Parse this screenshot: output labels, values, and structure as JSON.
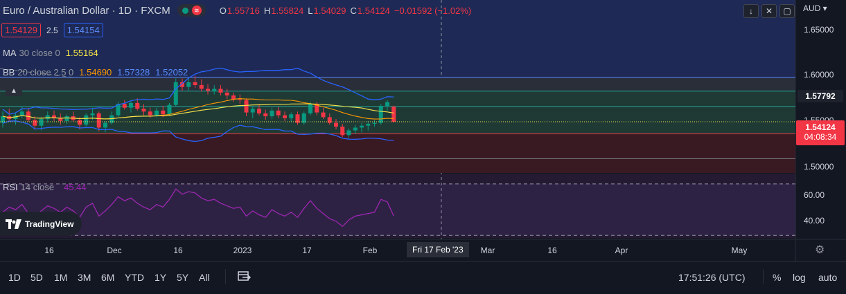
{
  "header": {
    "title": "Euro / Australian Dollar · 1D · FXCM",
    "open_label": "O",
    "open": "1.55716",
    "high_label": "H",
    "high": "1.55824",
    "low_label": "L",
    "low": "1.54029",
    "close_label": "C",
    "close": "1.54124",
    "change": "−0.01592 (−1.02%)"
  },
  "quote": {
    "bid": "1.54129",
    "spread": "2.5",
    "ask": "1.54154"
  },
  "indicators": {
    "ma": {
      "name": "MA",
      "params": "30 close 0",
      "value": "1.55164"
    },
    "bb": {
      "name": "BB",
      "params": "20 close 2.5 0",
      "basis": "1.54690",
      "upper": "1.57328",
      "lower": "1.52052"
    },
    "rsi": {
      "name": "RSI",
      "params": "14 close",
      "value": "45.44"
    }
  },
  "price_axis": {
    "currency": "AUD",
    "labels": [
      "1.65000",
      "1.60000",
      "1.55000",
      "1.50000"
    ],
    "crosshair_price": "1.57792",
    "last_price": "1.54124",
    "countdown": "04:08:34"
  },
  "rsi_axis": {
    "labels": [
      "60.00",
      "40.00"
    ]
  },
  "time_axis": {
    "labels": [
      "16",
      "Dec",
      "16",
      "2023",
      "17",
      "Feb",
      "Mar",
      "16",
      "Apr",
      "May"
    ],
    "crosshair_date": "Fri 17 Feb '23"
  },
  "brand": {
    "logo_text": "TradingView"
  },
  "bottom_bar": {
    "ranges": [
      "1D",
      "5D",
      "1M",
      "3M",
      "6M",
      "YTD",
      "1Y",
      "5Y",
      "All"
    ],
    "clock": "17:51:26 (UTC)",
    "options": [
      "%",
      "log",
      "auto"
    ]
  },
  "colors": {
    "background": "#131722",
    "up": "#089981",
    "down": "#f23645",
    "bollinger": "#2962ff",
    "bb_basis": "#ff9800",
    "ma": "#f7e54a",
    "rsi": "#9c27b0"
  },
  "chart_data": {
    "type": "candlestick",
    "symbol": "EURAUD",
    "timeframe": "1D",
    "candles": [
      {
        "o": 1.54,
        "h": 1.552,
        "l": 1.535,
        "c": 1.547
      },
      {
        "o": 1.547,
        "h": 1.555,
        "l": 1.542,
        "c": 1.544
      },
      {
        "o": 1.544,
        "h": 1.551,
        "l": 1.538,
        "c": 1.548
      },
      {
        "o": 1.548,
        "h": 1.557,
        "l": 1.545,
        "c": 1.552
      },
      {
        "o": 1.552,
        "h": 1.556,
        "l": 1.541,
        "c": 1.543
      },
      {
        "o": 1.543,
        "h": 1.547,
        "l": 1.533,
        "c": 1.537
      },
      {
        "o": 1.537,
        "h": 1.546,
        "l": 1.532,
        "c": 1.544
      },
      {
        "o": 1.544,
        "h": 1.552,
        "l": 1.54,
        "c": 1.548
      },
      {
        "o": 1.548,
        "h": 1.553,
        "l": 1.542,
        "c": 1.545
      },
      {
        "o": 1.545,
        "h": 1.55,
        "l": 1.538,
        "c": 1.542
      },
      {
        "o": 1.542,
        "h": 1.549,
        "l": 1.539,
        "c": 1.547
      },
      {
        "o": 1.547,
        "h": 1.552,
        "l": 1.541,
        "c": 1.543
      },
      {
        "o": 1.543,
        "h": 1.546,
        "l": 1.533,
        "c": 1.538
      },
      {
        "o": 1.538,
        "h": 1.55,
        "l": 1.536,
        "c": 1.548
      },
      {
        "o": 1.548,
        "h": 1.556,
        "l": 1.543,
        "c": 1.55
      },
      {
        "o": 1.55,
        "h": 1.552,
        "l": 1.531,
        "c": 1.535
      },
      {
        "o": 1.535,
        "h": 1.542,
        "l": 1.53,
        "c": 1.54
      },
      {
        "o": 1.54,
        "h": 1.552,
        "l": 1.538,
        "c": 1.548
      },
      {
        "o": 1.548,
        "h": 1.562,
        "l": 1.546,
        "c": 1.56
      },
      {
        "o": 1.56,
        "h": 1.564,
        "l": 1.554,
        "c": 1.556
      },
      {
        "o": 1.556,
        "h": 1.564,
        "l": 1.551,
        "c": 1.561
      },
      {
        "o": 1.561,
        "h": 1.566,
        "l": 1.553,
        "c": 1.555
      },
      {
        "o": 1.555,
        "h": 1.56,
        "l": 1.548,
        "c": 1.552
      },
      {
        "o": 1.552,
        "h": 1.556,
        "l": 1.545,
        "c": 1.548
      },
      {
        "o": 1.548,
        "h": 1.556,
        "l": 1.546,
        "c": 1.553
      },
      {
        "o": 1.553,
        "h": 1.558,
        "l": 1.546,
        "c": 1.549
      },
      {
        "o": 1.549,
        "h": 1.561,
        "l": 1.547,
        "c": 1.559
      },
      {
        "o": 1.559,
        "h": 1.587,
        "l": 1.557,
        "c": 1.583
      },
      {
        "o": 1.583,
        "h": 1.587,
        "l": 1.574,
        "c": 1.578
      },
      {
        "o": 1.578,
        "h": 1.587,
        "l": 1.574,
        "c": 1.583
      },
      {
        "o": 1.583,
        "h": 1.59,
        "l": 1.577,
        "c": 1.58
      },
      {
        "o": 1.58,
        "h": 1.586,
        "l": 1.573,
        "c": 1.576
      },
      {
        "o": 1.576,
        "h": 1.581,
        "l": 1.57,
        "c": 1.574
      },
      {
        "o": 1.574,
        "h": 1.58,
        "l": 1.57,
        "c": 1.576
      },
      {
        "o": 1.576,
        "h": 1.58,
        "l": 1.569,
        "c": 1.572
      },
      {
        "o": 1.572,
        "h": 1.576,
        "l": 1.565,
        "c": 1.569
      },
      {
        "o": 1.569,
        "h": 1.572,
        "l": 1.562,
        "c": 1.565
      },
      {
        "o": 1.565,
        "h": 1.57,
        "l": 1.56,
        "c": 1.564
      },
      {
        "o": 1.564,
        "h": 1.566,
        "l": 1.547,
        "c": 1.551
      },
      {
        "o": 1.551,
        "h": 1.558,
        "l": 1.545,
        "c": 1.555
      },
      {
        "o": 1.555,
        "h": 1.56,
        "l": 1.548,
        "c": 1.55
      },
      {
        "o": 1.55,
        "h": 1.554,
        "l": 1.543,
        "c": 1.547
      },
      {
        "o": 1.547,
        "h": 1.556,
        "l": 1.544,
        "c": 1.553
      },
      {
        "o": 1.553,
        "h": 1.557,
        "l": 1.545,
        "c": 1.548
      },
      {
        "o": 1.548,
        "h": 1.552,
        "l": 1.542,
        "c": 1.545
      },
      {
        "o": 1.545,
        "h": 1.551,
        "l": 1.541,
        "c": 1.549
      },
      {
        "o": 1.549,
        "h": 1.552,
        "l": 1.538,
        "c": 1.54
      },
      {
        "o": 1.54,
        "h": 1.552,
        "l": 1.538,
        "c": 1.55
      },
      {
        "o": 1.55,
        "h": 1.562,
        "l": 1.548,
        "c": 1.56
      },
      {
        "o": 1.56,
        "h": 1.562,
        "l": 1.548,
        "c": 1.551
      },
      {
        "o": 1.551,
        "h": 1.556,
        "l": 1.544,
        "c": 1.546
      },
      {
        "o": 1.546,
        "h": 1.55,
        "l": 1.538,
        "c": 1.54
      },
      {
        "o": 1.54,
        "h": 1.544,
        "l": 1.533,
        "c": 1.536
      },
      {
        "o": 1.536,
        "h": 1.539,
        "l": 1.525,
        "c": 1.527
      },
      {
        "o": 1.527,
        "h": 1.534,
        "l": 1.524,
        "c": 1.532
      },
      {
        "o": 1.532,
        "h": 1.538,
        "l": 1.528,
        "c": 1.535
      },
      {
        "o": 1.535,
        "h": 1.54,
        "l": 1.53,
        "c": 1.537
      },
      {
        "o": 1.537,
        "h": 1.542,
        "l": 1.532,
        "c": 1.539
      },
      {
        "o": 1.539,
        "h": 1.543,
        "l": 1.536,
        "c": 1.54
      },
      {
        "o": 1.54,
        "h": 1.56,
        "l": 1.538,
        "c": 1.558
      },
      {
        "o": 1.558,
        "h": 1.564,
        "l": 1.553,
        "c": 1.562
      },
      {
        "o": 1.5572,
        "h": 1.5582,
        "l": 1.5403,
        "c": 1.5412
      }
    ],
    "price_range": [
      1.487,
      1.67
    ],
    "rsi": [
      48,
      52,
      50,
      54,
      47,
      44,
      49,
      53,
      51,
      48,
      52,
      49,
      44,
      52,
      55,
      45,
      49,
      54,
      60,
      57,
      59,
      55,
      52,
      50,
      54,
      52,
      58,
      66,
      62,
      64,
      63,
      59,
      57,
      58,
      55,
      53,
      51,
      52,
      45,
      49,
      46,
      44,
      50,
      47,
      45,
      48,
      44,
      51,
      57,
      51,
      47,
      43,
      41,
      37,
      42,
      45,
      46,
      47,
      48,
      58,
      56,
      45
    ],
    "rsi_range": [
      28,
      78
    ],
    "support_resistance_levels": [
      1.5881,
      1.5736,
      1.5573,
      1.5284,
      1.502
    ],
    "trendline": {
      "from": 1.59,
      "to": 1.497
    }
  }
}
